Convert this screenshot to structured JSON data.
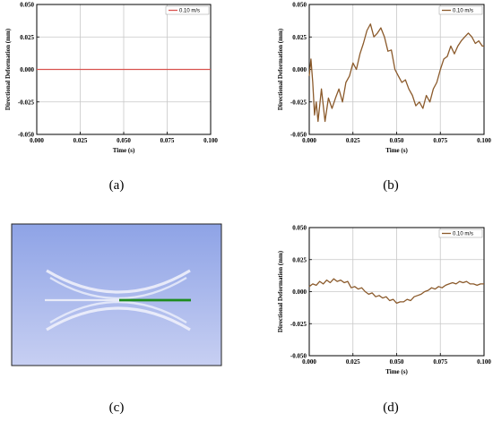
{
  "figure": {
    "captions": [
      "(a)",
      "(b)",
      "(c)",
      "(d)"
    ]
  },
  "colors": {
    "series_a": "#d9534f",
    "series_bd": "#8b5a2b",
    "grid": "#c8c8c8",
    "scene_top": "#8ea3e6",
    "scene_bottom": "#c7cff2",
    "beam_highlight": "#1e8c1e"
  },
  "chart_data": [
    {
      "id": "a",
      "type": "line",
      "xlabel": "Time (s)",
      "ylabel": "Directional Deformation (mm)",
      "xlim": [
        0.0,
        0.1
      ],
      "ylim": [
        -0.05,
        0.05
      ],
      "xticks": [
        "0.000",
        "0.025",
        "0.050",
        "0.075",
        "0.100"
      ],
      "yticks": [
        "0.050",
        "0.025",
        "0.000",
        "-0.025",
        "-0.050"
      ],
      "grid": true,
      "legend_position": "top-right",
      "series": [
        {
          "name": "0.10 m/s",
          "x": [
            0.0,
            0.01,
            0.02,
            0.03,
            0.04,
            0.05,
            0.06,
            0.07,
            0.08,
            0.09,
            0.1
          ],
          "y": [
            0.0,
            0.0,
            0.0,
            0.0,
            0.0,
            0.0,
            0.0,
            0.0,
            0.0,
            0.0,
            0.0
          ]
        }
      ]
    },
    {
      "id": "b",
      "type": "line",
      "xlabel": "Time (s)",
      "ylabel": "Directional Deformation (mm)",
      "xlim": [
        0.0,
        0.1
      ],
      "ylim": [
        -0.05,
        0.05
      ],
      "xticks": [
        "0.000",
        "0.025",
        "0.050",
        "0.075",
        "0.100"
      ],
      "yticks": [
        "0.050",
        "0.025",
        "0.000",
        "-0.025",
        "-0.050"
      ],
      "grid": true,
      "legend_position": "top-right",
      "series": [
        {
          "name": "0.10 m/s",
          "x": [
            0.0,
            0.001,
            0.002,
            0.003,
            0.004,
            0.005,
            0.007,
            0.009,
            0.011,
            0.013,
            0.015,
            0.017,
            0.019,
            0.021,
            0.023,
            0.025,
            0.027,
            0.029,
            0.031,
            0.033,
            0.035,
            0.037,
            0.039,
            0.041,
            0.043,
            0.045,
            0.047,
            0.049,
            0.051,
            0.053,
            0.055,
            0.057,
            0.059,
            0.061,
            0.063,
            0.065,
            0.067,
            0.069,
            0.071,
            0.073,
            0.075,
            0.077,
            0.079,
            0.081,
            0.083,
            0.085,
            0.087,
            0.089,
            0.091,
            0.093,
            0.095,
            0.097,
            0.099,
            0.1
          ],
          "y": [
            -0.005,
            0.008,
            -0.01,
            -0.035,
            -0.025,
            -0.04,
            -0.015,
            -0.04,
            -0.022,
            -0.03,
            -0.022,
            -0.015,
            -0.025,
            -0.01,
            -0.005,
            0.005,
            0.0,
            0.012,
            0.02,
            0.03,
            0.035,
            0.025,
            0.028,
            0.032,
            0.025,
            0.014,
            0.015,
            0.0,
            -0.005,
            -0.01,
            -0.008,
            -0.015,
            -0.02,
            -0.028,
            -0.025,
            -0.03,
            -0.02,
            -0.025,
            -0.015,
            -0.01,
            0.0,
            0.008,
            0.01,
            0.018,
            0.012,
            0.018,
            0.022,
            0.025,
            0.028,
            0.025,
            0.02,
            0.022,
            0.018,
            0.018
          ]
        }
      ]
    },
    {
      "id": "d",
      "type": "line",
      "xlabel": "Time (s)",
      "ylabel": "Directional Deformation (mm)",
      "xlim": [
        0.0,
        0.1
      ],
      "ylim": [
        -0.05,
        0.05
      ],
      "xticks": [
        "0.000",
        "0.025",
        "0.050",
        "0.075",
        "0.100"
      ],
      "yticks": [
        "0.050",
        "0.025",
        "0.000",
        "-0.025",
        "-0.050"
      ],
      "grid": true,
      "legend_position": "top-right",
      "series": [
        {
          "name": "0.10 m/s",
          "x": [
            0.0,
            0.002,
            0.004,
            0.006,
            0.008,
            0.01,
            0.012,
            0.014,
            0.016,
            0.018,
            0.02,
            0.022,
            0.024,
            0.026,
            0.028,
            0.03,
            0.032,
            0.034,
            0.036,
            0.038,
            0.04,
            0.042,
            0.044,
            0.046,
            0.048,
            0.05,
            0.052,
            0.054,
            0.056,
            0.058,
            0.06,
            0.062,
            0.064,
            0.066,
            0.068,
            0.07,
            0.072,
            0.074,
            0.076,
            0.078,
            0.08,
            0.082,
            0.084,
            0.086,
            0.088,
            0.09,
            0.092,
            0.094,
            0.096,
            0.098,
            0.1
          ],
          "y": [
            0.004,
            0.006,
            0.005,
            0.008,
            0.006,
            0.009,
            0.007,
            0.01,
            0.008,
            0.009,
            0.007,
            0.008,
            0.003,
            0.004,
            0.002,
            0.003,
            0.0,
            -0.002,
            -0.001,
            -0.004,
            -0.003,
            -0.005,
            -0.004,
            -0.007,
            -0.006,
            -0.009,
            -0.008,
            -0.008,
            -0.006,
            -0.007,
            -0.004,
            -0.003,
            -0.002,
            0.0,
            0.001,
            0.003,
            0.002,
            0.004,
            0.003,
            0.005,
            0.006,
            0.007,
            0.006,
            0.008,
            0.007,
            0.008,
            0.006,
            0.006,
            0.005,
            0.006,
            0.006
          ]
        }
      ]
    }
  ]
}
